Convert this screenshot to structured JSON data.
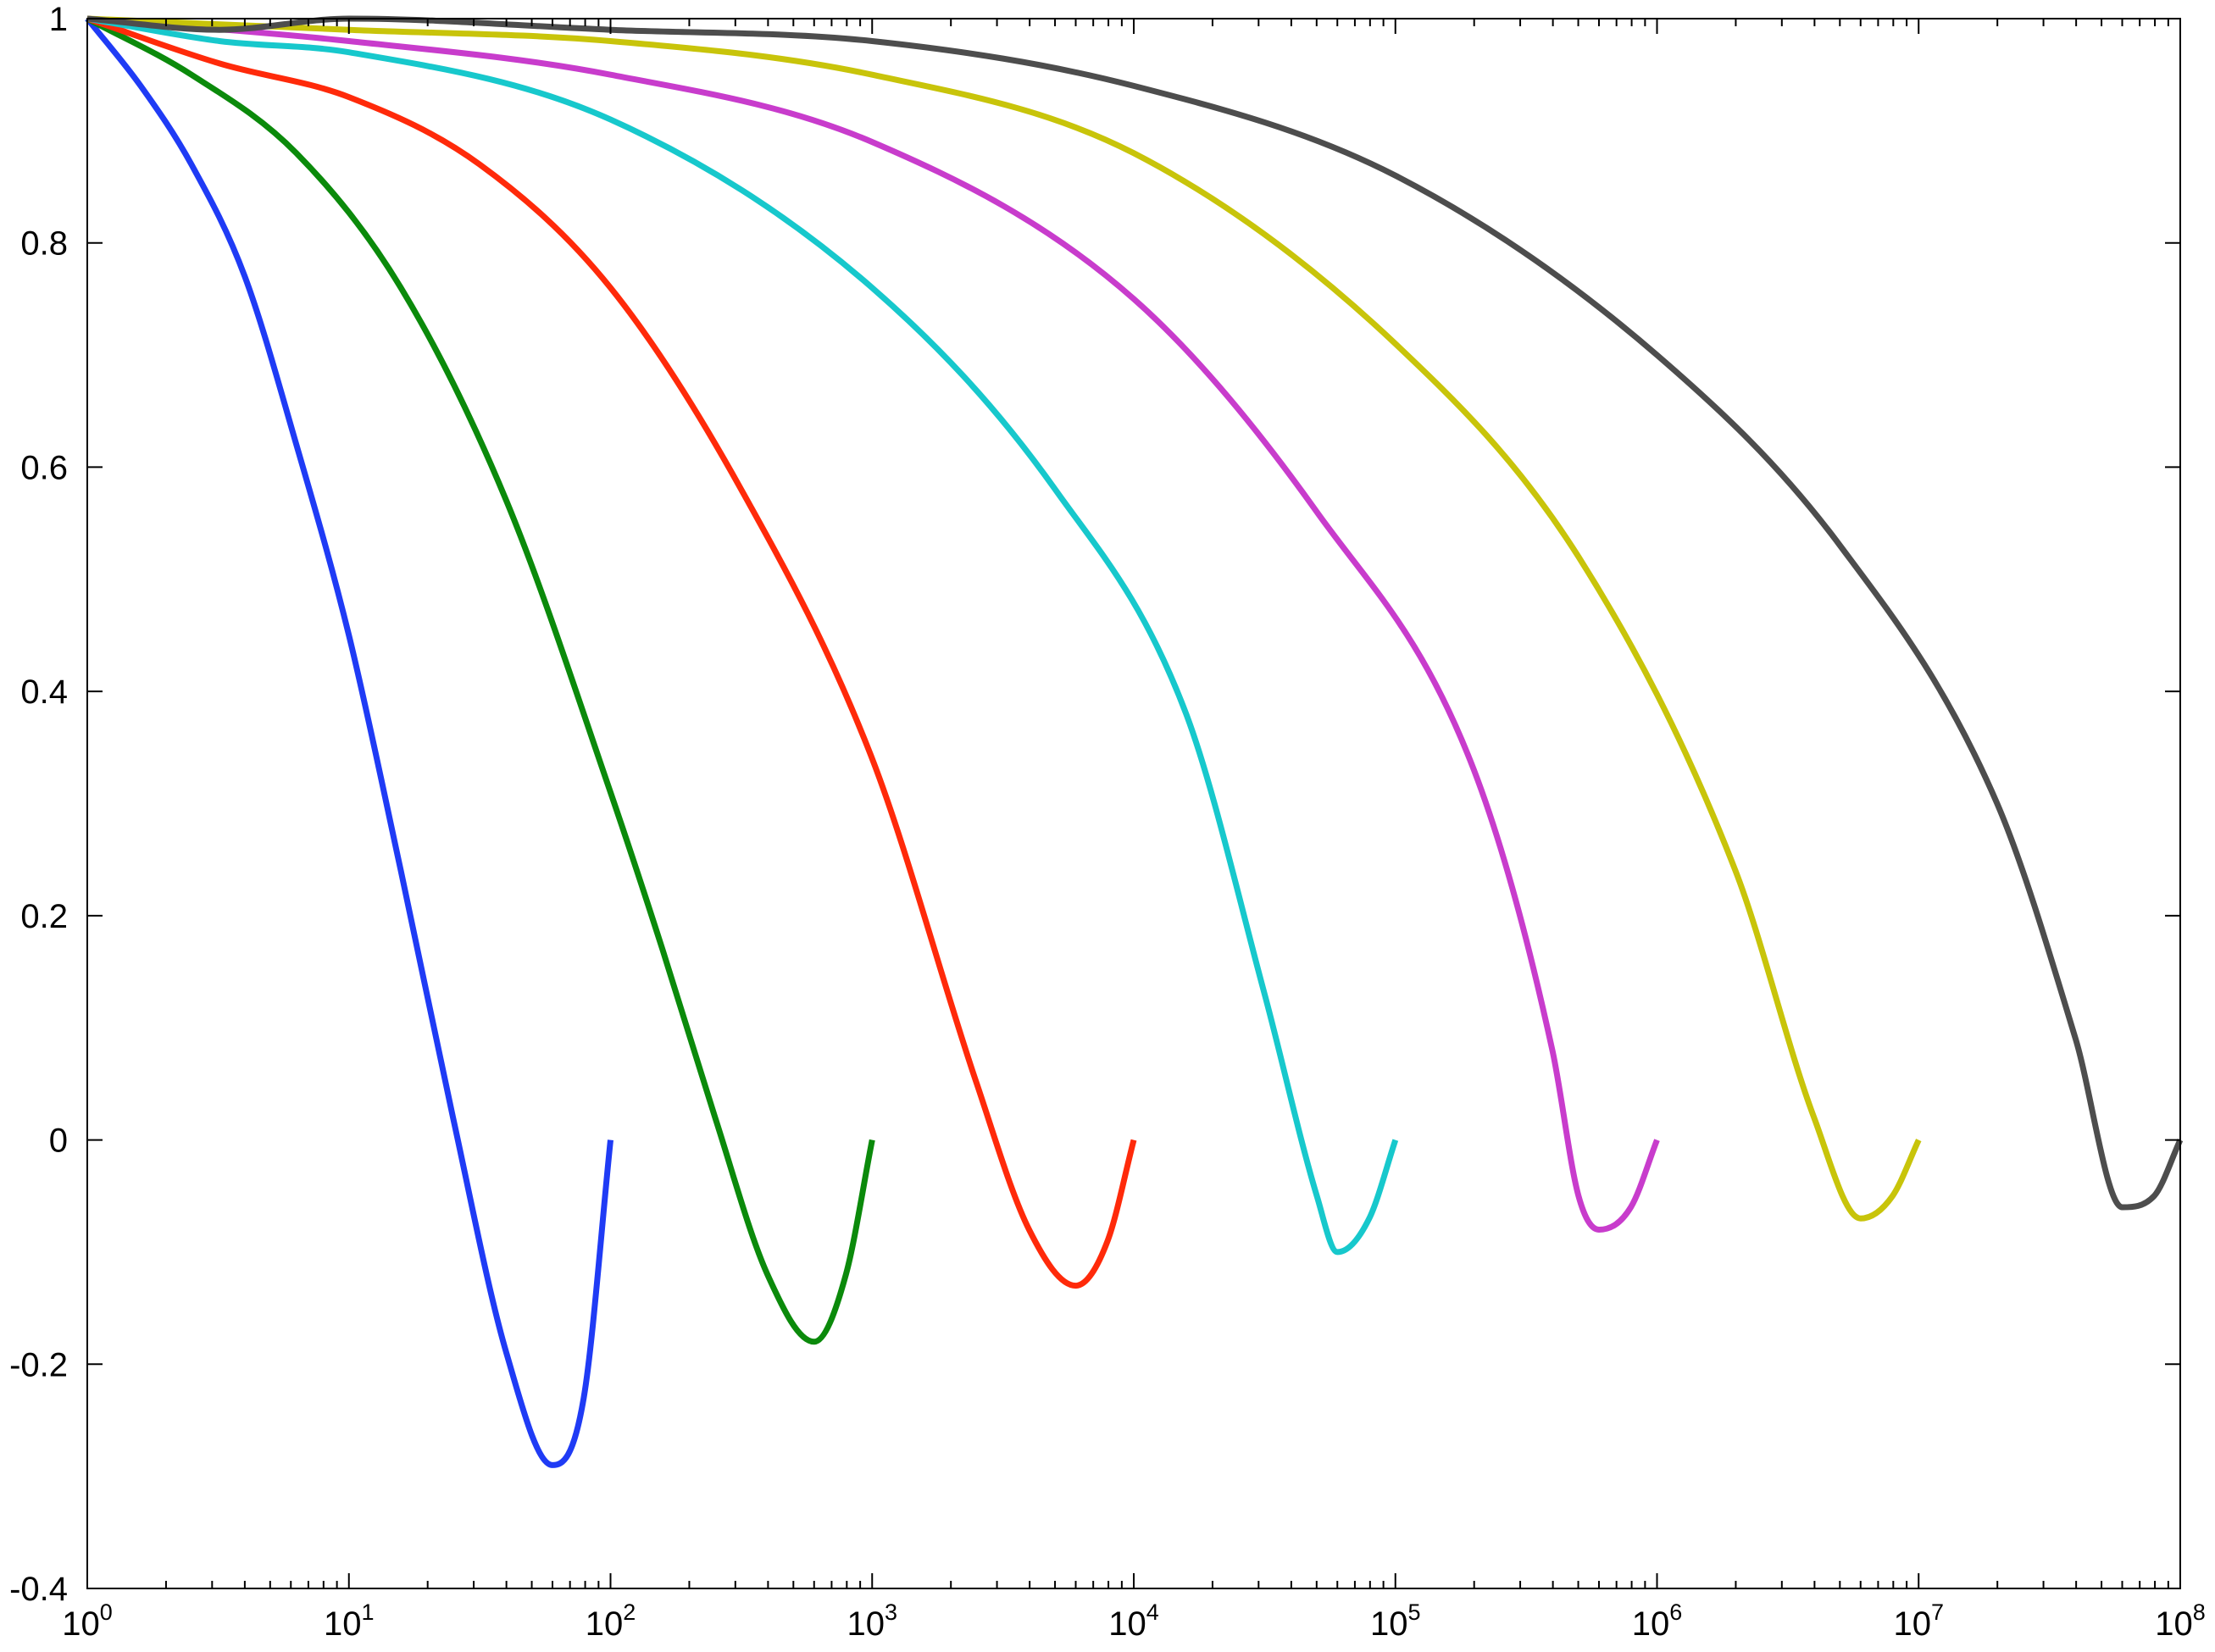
{
  "chart_data": {
    "type": "line",
    "title": "",
    "xlabel": "",
    "ylabel": "",
    "x_scale": "log",
    "xlim": [
      1,
      100000000
    ],
    "ylim": [
      -0.4,
      1
    ],
    "grid": false,
    "x_ticks": [
      {
        "base": "10",
        "exp": "0"
      },
      {
        "base": "10",
        "exp": "1"
      },
      {
        "base": "10",
        "exp": "2"
      },
      {
        "base": "10",
        "exp": "3"
      },
      {
        "base": "10",
        "exp": "4"
      },
      {
        "base": "10",
        "exp": "5"
      },
      {
        "base": "10",
        "exp": "6"
      },
      {
        "base": "10",
        "exp": "7"
      },
      {
        "base": "10",
        "exp": "8"
      }
    ],
    "y_ticks": [
      "-0.4",
      "-0.2",
      "0",
      "0.2",
      "0.4",
      "0.6",
      "0.8",
      "1"
    ],
    "series": [
      {
        "color": "#1f3bf5",
        "points": [
          [
            1,
            1
          ],
          [
            1.6,
            0.94
          ],
          [
            2.5,
            0.87
          ],
          [
            4,
            0.77
          ],
          [
            6.3,
            0.62
          ],
          [
            10,
            0.45
          ],
          [
            15.8,
            0.24
          ],
          [
            25,
            0.02
          ],
          [
            40,
            -0.19
          ],
          [
            60,
            -0.29
          ],
          [
            79,
            -0.23
          ],
          [
            100,
            0
          ]
        ]
      },
      {
        "color": "#0b8a0b",
        "points": [
          [
            1,
            1
          ],
          [
            2.5,
            0.95
          ],
          [
            6.3,
            0.88
          ],
          [
            15.8,
            0.76
          ],
          [
            40,
            0.57
          ],
          [
            100,
            0.31
          ],
          [
            158,
            0.17
          ],
          [
            251,
            0.02
          ],
          [
            398,
            -0.12
          ],
          [
            600,
            -0.18
          ],
          [
            794,
            -0.12
          ],
          [
            1000,
            0
          ]
        ]
      },
      {
        "color": "#ff2a0a",
        "points": [
          [
            1,
            1
          ],
          [
            3.2,
            0.96
          ],
          [
            10,
            0.93
          ],
          [
            31.6,
            0.87
          ],
          [
            100,
            0.76
          ],
          [
            316,
            0.58
          ],
          [
            1000,
            0.34
          ],
          [
            2512,
            0.05
          ],
          [
            3981,
            -0.08
          ],
          [
            6000,
            -0.13
          ],
          [
            7943,
            -0.09
          ],
          [
            10000,
            0
          ]
        ]
      },
      {
        "color": "#17c8cc",
        "points": [
          [
            1,
            1
          ],
          [
            3.2,
            0.98
          ],
          [
            10,
            0.97
          ],
          [
            100,
            0.91
          ],
          [
            1000,
            0.76
          ],
          [
            5012,
            0.58
          ],
          [
            15849,
            0.38
          ],
          [
            31623,
            0.13
          ],
          [
            50119,
            -0.05
          ],
          [
            60000,
            -0.1
          ],
          [
            79433,
            -0.07
          ],
          [
            100000,
            0
          ]
        ]
      },
      {
        "color": "#c83ccc",
        "points": [
          [
            1,
            1
          ],
          [
            10,
            0.98
          ],
          [
            100,
            0.95
          ],
          [
            1000,
            0.89
          ],
          [
            10000,
            0.75
          ],
          [
            50119,
            0.56
          ],
          [
            199526,
            0.33
          ],
          [
            398107,
            0.08
          ],
          [
            501187,
            -0.05
          ],
          [
            600000,
            -0.08
          ],
          [
            794328,
            -0.06
          ],
          [
            1000000,
            0
          ]
        ]
      },
      {
        "color": "#c8c40a",
        "points": [
          [
            1,
            1
          ],
          [
            10,
            0.99
          ],
          [
            100,
            0.98
          ],
          [
            1000,
            0.95
          ],
          [
            10000,
            0.88
          ],
          [
            100000,
            0.71
          ],
          [
            501187,
            0.52
          ],
          [
            1995262,
            0.24
          ],
          [
            3981072,
            0.02
          ],
          [
            6000000,
            -0.07
          ],
          [
            7943282,
            -0.05
          ],
          [
            10000000,
            0
          ]
        ]
      },
      {
        "color": "#4d4d4d",
        "points": [
          [
            1,
            1
          ],
          [
            3.2,
            0.99
          ],
          [
            10,
            1
          ],
          [
            100,
            0.99
          ],
          [
            1000,
            0.98
          ],
          [
            10000,
            0.94
          ],
          [
            100000,
            0.86
          ],
          [
            1000000,
            0.7
          ],
          [
            5011872,
            0.53
          ],
          [
            19952623,
            0.3
          ],
          [
            39810717,
            0.09
          ],
          [
            60000000,
            -0.06
          ],
          [
            79432823,
            -0.05
          ],
          [
            100000000,
            0
          ]
        ]
      }
    ]
  }
}
